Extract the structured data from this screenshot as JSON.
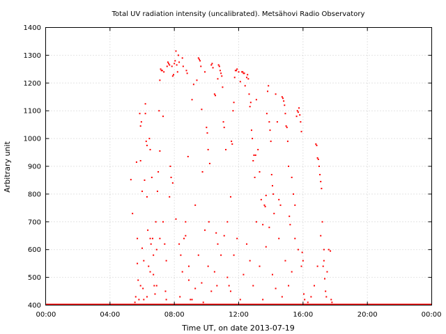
{
  "chart_data": {
    "type": "scatter",
    "title": "Total UV radiation intensity (uncalibrated). Metsähovi Radio Observatory",
    "xlabel": "Time UT, on date 2013-07-19",
    "ylabel": "Arbitrary unit",
    "xlim": [
      0,
      24
    ],
    "ylim": [
      400,
      1400
    ],
    "xticks": [
      0,
      4,
      8,
      12,
      16,
      20,
      24
    ],
    "xtick_labels": [
      "00:00",
      "04:00",
      "08:00",
      "12:00",
      "16:00",
      "20:00",
      "00:00"
    ],
    "yticks": [
      400,
      500,
      600,
      700,
      800,
      900,
      1000,
      1100,
      1200,
      1300,
      1400
    ],
    "ytick_labels": [
      "400",
      "500",
      "600",
      "700",
      "800",
      "900",
      "1000",
      "1100",
      "1200",
      "1300",
      "1400"
    ],
    "grid": true,
    "color": "#ff0000",
    "baseline": {
      "value": 400,
      "x_start": 0,
      "x_end": 24
    },
    "points": [
      [
        5.3,
        852
      ],
      [
        5.4,
        730
      ],
      [
        5.55,
        410
      ],
      [
        5.6,
        430
      ],
      [
        5.65,
        915
      ],
      [
        5.7,
        640
      ],
      [
        5.7,
        550
      ],
      [
        5.75,
        490
      ],
      [
        5.8,
        420
      ],
      [
        5.85,
        1090
      ],
      [
        5.9,
        1045
      ],
      [
        5.9,
        920
      ],
      [
        5.95,
        1060
      ],
      [
        6.0,
        810
      ],
      [
        6.0,
        605
      ],
      [
        6.05,
        460
      ],
      [
        6.1,
        420
      ],
      [
        6.15,
        850
      ],
      [
        6.2,
        1090
      ],
      [
        6.2,
        1125
      ],
      [
        6.25,
        990
      ],
      [
        6.3,
        975
      ],
      [
        6.3,
        790
      ],
      [
        6.35,
        670
      ],
      [
        6.4,
        540
      ],
      [
        6.45,
        1000
      ],
      [
        6.5,
        960
      ],
      [
        6.5,
        520
      ],
      [
        6.55,
        620
      ],
      [
        6.6,
        860
      ],
      [
        6.65,
        640
      ],
      [
        6.7,
        580
      ],
      [
        6.75,
        470
      ],
      [
        6.8,
        440
      ],
      [
        6.85,
        700
      ],
      [
        6.9,
        470
      ],
      [
        6.95,
        810
      ],
      [
        7.0,
        880
      ],
      [
        7.05,
        1100
      ],
      [
        7.1,
        955
      ],
      [
        7.1,
        1210
      ],
      [
        7.15,
        1250
      ],
      [
        7.2,
        1245
      ],
      [
        7.25,
        1245
      ],
      [
        7.3,
        1080
      ],
      [
        7.35,
        1240
      ],
      [
        7.4,
        620
      ],
      [
        7.45,
        450
      ],
      [
        7.5,
        420
      ],
      [
        7.55,
        1260
      ],
      [
        7.6,
        1275
      ],
      [
        7.65,
        1270
      ],
      [
        7.7,
        1265
      ],
      [
        7.75,
        900
      ],
      [
        7.8,
        860
      ],
      [
        7.85,
        1260
      ],
      [
        7.9,
        1225
      ],
      [
        7.95,
        1230
      ],
      [
        8.0,
        1270
      ],
      [
        8.05,
        1280
      ],
      [
        8.1,
        1315
      ],
      [
        8.15,
        1265
      ],
      [
        8.2,
        1240
      ],
      [
        8.25,
        1300
      ],
      [
        8.3,
        1275
      ],
      [
        8.35,
        430
      ],
      [
        8.4,
        580
      ],
      [
        8.5,
        1290
      ],
      [
        8.55,
        1260
      ],
      [
        8.6,
        640
      ],
      [
        8.7,
        700
      ],
      [
        8.75,
        1245
      ],
      [
        8.8,
        1235
      ],
      [
        8.85,
        935
      ],
      [
        8.9,
        540
      ],
      [
        9.0,
        420
      ],
      [
        9.1,
        1140
      ],
      [
        9.2,
        1195
      ],
      [
        9.3,
        460
      ],
      [
        9.4,
        1210
      ],
      [
        9.5,
        1290
      ],
      [
        9.55,
        1285
      ],
      [
        9.6,
        1280
      ],
      [
        9.65,
        1260
      ],
      [
        9.7,
        1105
      ],
      [
        9.75,
        880
      ],
      [
        9.8,
        410
      ],
      [
        9.9,
        1240
      ],
      [
        10.0,
        1040
      ],
      [
        10.05,
        1020
      ],
      [
        10.1,
        960
      ],
      [
        10.15,
        700
      ],
      [
        10.2,
        910
      ],
      [
        10.3,
        1265
      ],
      [
        10.35,
        1270
      ],
      [
        10.4,
        1255
      ],
      [
        10.5,
        1160
      ],
      [
        10.55,
        1155
      ],
      [
        10.6,
        660
      ],
      [
        10.65,
        470
      ],
      [
        10.7,
        1215
      ],
      [
        10.75,
        1265
      ],
      [
        10.8,
        1260
      ],
      [
        10.85,
        1245
      ],
      [
        10.9,
        1235
      ],
      [
        10.95,
        1225
      ],
      [
        11.0,
        1185
      ],
      [
        11.05,
        1060
      ],
      [
        11.1,
        1040
      ],
      [
        11.2,
        960
      ],
      [
        11.3,
        700
      ],
      [
        11.4,
        470
      ],
      [
        11.5,
        790
      ],
      [
        11.55,
        990
      ],
      [
        11.6,
        980
      ],
      [
        11.65,
        1100
      ],
      [
        11.7,
        1130
      ],
      [
        11.75,
        1220
      ],
      [
        11.8,
        1245
      ],
      [
        11.85,
        1245
      ],
      [
        11.9,
        1250
      ],
      [
        12.0,
        1240
      ],
      [
        12.1,
        1205
      ],
      [
        12.2,
        1240
      ],
      [
        12.25,
        1240
      ],
      [
        12.3,
        1235
      ],
      [
        12.35,
        1235
      ],
      [
        12.4,
        1190
      ],
      [
        12.5,
        1220
      ],
      [
        12.55,
        1230
      ],
      [
        12.6,
        1215
      ],
      [
        12.65,
        1160
      ],
      [
        12.7,
        1115
      ],
      [
        12.75,
        1130
      ],
      [
        12.8,
        1030
      ],
      [
        12.85,
        1000
      ],
      [
        12.9,
        920
      ],
      [
        12.95,
        940
      ],
      [
        13.0,
        860
      ],
      [
        13.05,
        940
      ],
      [
        13.1,
        1140
      ],
      [
        13.2,
        960
      ],
      [
        13.3,
        880
      ],
      [
        13.4,
        780
      ],
      [
        13.5,
        690
      ],
      [
        13.6,
        760
      ],
      [
        13.65,
        755
      ],
      [
        13.7,
        795
      ],
      [
        13.75,
        1090
      ],
      [
        13.8,
        1170
      ],
      [
        13.85,
        1190
      ],
      [
        13.9,
        1060
      ],
      [
        13.95,
        1030
      ],
      [
        14.0,
        990
      ],
      [
        14.05,
        870
      ],
      [
        14.1,
        830
      ],
      [
        14.15,
        800
      ],
      [
        14.2,
        730
      ],
      [
        14.3,
        1160
      ],
      [
        14.4,
        1060
      ],
      [
        14.5,
        780
      ],
      [
        14.6,
        760
      ],
      [
        14.7,
        1150
      ],
      [
        14.75,
        1145
      ],
      [
        14.8,
        1135
      ],
      [
        14.85,
        1120
      ],
      [
        14.9,
        1090
      ],
      [
        14.95,
        1045
      ],
      [
        15.0,
        1040
      ],
      [
        15.05,
        990
      ],
      [
        15.1,
        900
      ],
      [
        15.15,
        720
      ],
      [
        15.2,
        690
      ],
      [
        15.3,
        860
      ],
      [
        15.4,
        800
      ],
      [
        15.5,
        760
      ],
      [
        15.6,
        1080
      ],
      [
        15.65,
        1100
      ],
      [
        15.7,
        1095
      ],
      [
        15.75,
        1110
      ],
      [
        15.8,
        1085
      ],
      [
        15.85,
        1060
      ],
      [
        15.9,
        1025
      ],
      [
        15.95,
        590
      ],
      [
        16.0,
        560
      ],
      [
        16.05,
        440
      ],
      [
        16.8,
        980
      ],
      [
        16.85,
        975
      ],
      [
        16.9,
        930
      ],
      [
        16.95,
        925
      ],
      [
        17.0,
        900
      ],
      [
        17.05,
        870
      ],
      [
        17.1,
        845
      ],
      [
        17.15,
        820
      ],
      [
        17.2,
        700
      ],
      [
        17.25,
        540
      ],
      [
        17.3,
        600
      ],
      [
        17.35,
        495
      ],
      [
        17.4,
        450
      ],
      [
        17.45,
        430
      ],
      [
        5.9,
        470
      ],
      [
        6.1,
        560
      ],
      [
        6.3,
        430
      ],
      [
        6.5,
        640
      ],
      [
        6.7,
        510
      ],
      [
        6.9,
        600
      ],
      [
        7.1,
        640
      ],
      [
        7.3,
        700
      ],
      [
        7.5,
        560
      ],
      [
        7.7,
        790
      ],
      [
        7.9,
        840
      ],
      [
        8.1,
        710
      ],
      [
        8.3,
        620
      ],
      [
        8.5,
        520
      ],
      [
        8.7,
        650
      ],
      [
        8.9,
        490
      ],
      [
        9.1,
        420
      ],
      [
        9.3,
        760
      ],
      [
        9.5,
        580
      ],
      [
        9.7,
        480
      ],
      [
        9.9,
        670
      ],
      [
        10.1,
        540
      ],
      [
        10.3,
        450
      ],
      [
        10.5,
        520
      ],
      [
        10.7,
        620
      ],
      [
        10.9,
        580
      ],
      [
        11.1,
        650
      ],
      [
        11.3,
        500
      ],
      [
        11.5,
        450
      ],
      [
        11.7,
        580
      ],
      [
        11.9,
        640
      ],
      [
        12.1,
        420
      ],
      [
        12.3,
        510
      ],
      [
        12.5,
        620
      ],
      [
        12.7,
        560
      ],
      [
        12.9,
        470
      ],
      [
        13.1,
        700
      ],
      [
        13.3,
        540
      ],
      [
        13.5,
        420
      ],
      [
        13.7,
        610
      ],
      [
        13.9,
        680
      ],
      [
        14.1,
        510
      ],
      [
        14.3,
        460
      ],
      [
        14.5,
        640
      ],
      [
        14.7,
        430
      ],
      [
        14.9,
        560
      ],
      [
        15.1,
        470
      ],
      [
        15.3,
        520
      ],
      [
        15.5,
        640
      ],
      [
        15.7,
        600
      ],
      [
        15.9,
        540
      ],
      [
        16.1,
        420
      ],
      [
        16.3,
        410
      ],
      [
        16.5,
        430
      ],
      [
        16.7,
        470
      ],
      [
        16.9,
        540
      ],
      [
        17.1,
        650
      ],
      [
        17.3,
        560
      ],
      [
        17.5,
        520
      ],
      [
        17.6,
        600
      ],
      [
        17.7,
        595
      ],
      [
        17.75,
        420
      ],
      [
        17.8,
        410
      ]
    ]
  }
}
